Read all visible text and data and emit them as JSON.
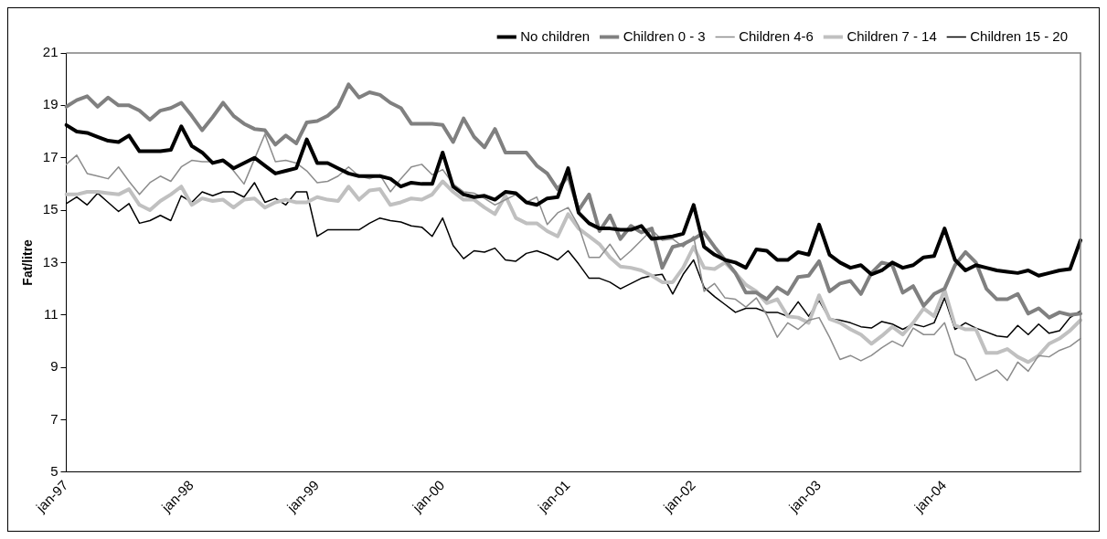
{
  "chart_data": {
    "type": "line",
    "ylabel": "Fat/litre",
    "categories": [
      "jan-97",
      null,
      null,
      null,
      null,
      null,
      null,
      null,
      null,
      null,
      null,
      null,
      "jan-98",
      null,
      null,
      null,
      null,
      null,
      null,
      null,
      null,
      null,
      null,
      null,
      "jan-99",
      null,
      null,
      null,
      null,
      null,
      null,
      null,
      null,
      null,
      null,
      null,
      "jan-00",
      null,
      null,
      null,
      null,
      null,
      null,
      null,
      null,
      null,
      null,
      null,
      "jan-01",
      null,
      null,
      null,
      null,
      null,
      null,
      null,
      null,
      null,
      null,
      null,
      "jan-02",
      null,
      null,
      null,
      null,
      null,
      null,
      null,
      null,
      null,
      null,
      null,
      "jan-03",
      null,
      null,
      null,
      null,
      null,
      null,
      null,
      null,
      null,
      null,
      null,
      "jan-04",
      null,
      null,
      null,
      null,
      null,
      null,
      null,
      null,
      null,
      null,
      null,
      null,
      null
    ],
    "series": [
      {
        "name": "No children",
        "color": "#000000",
        "values": [
          18.25,
          18.0,
          17.95,
          17.8,
          17.65,
          17.6,
          17.85,
          17.25,
          17.25,
          17.25,
          17.3,
          18.2,
          17.45,
          17.2,
          16.8,
          16.9,
          16.6,
          16.8,
          17.0,
          16.7,
          16.4,
          16.5,
          16.6,
          17.7,
          16.8,
          16.8,
          16.6,
          16.4,
          16.3,
          16.3,
          16.3,
          16.2,
          15.9,
          16.05,
          16.0,
          16.0,
          17.2,
          15.9,
          15.6,
          15.5,
          15.55,
          15.4,
          15.7,
          15.65,
          15.3,
          15.2,
          15.45,
          15.5,
          16.6,
          14.9,
          14.5,
          14.3,
          14.3,
          14.25,
          14.25,
          14.4,
          13.9,
          13.95,
          14.0,
          14.1,
          15.2,
          13.6,
          13.3,
          13.1,
          13.0,
          12.8,
          13.5,
          13.45,
          13.1,
          13.1,
          13.4,
          13.3,
          14.45,
          13.3,
          13.0,
          12.8,
          12.9,
          12.55,
          12.7,
          13.0,
          12.8,
          12.9,
          13.2,
          13.25,
          14.3,
          13.1,
          12.7,
          12.9,
          12.8,
          12.7,
          12.65,
          12.6,
          12.7,
          12.5,
          12.6,
          12.7,
          12.75,
          13.85
        ]
      },
      {
        "name": "Children 0 - 3",
        "color": "#808080",
        "values": [
          18.95,
          19.2,
          19.35,
          18.95,
          19.3,
          19.0,
          19.0,
          18.8,
          18.45,
          18.8,
          18.9,
          19.1,
          18.6,
          18.05,
          18.55,
          19.1,
          18.6,
          18.3,
          18.1,
          18.05,
          17.5,
          17.85,
          17.55,
          18.35,
          18.4,
          18.6,
          18.95,
          19.8,
          19.3,
          19.5,
          19.4,
          19.1,
          18.9,
          18.3,
          18.3,
          18.3,
          18.25,
          17.6,
          18.5,
          17.8,
          17.4,
          18.1,
          17.2,
          17.2,
          17.2,
          16.7,
          16.4,
          15.8,
          16.3,
          15.0,
          15.6,
          14.2,
          14.8,
          13.9,
          14.4,
          14.15,
          14.3,
          12.8,
          13.6,
          13.7,
          13.9,
          14.15,
          13.6,
          13.1,
          12.6,
          11.85,
          11.85,
          11.6,
          12.05,
          11.8,
          12.45,
          12.5,
          13.05,
          11.9,
          12.2,
          12.3,
          11.8,
          12.6,
          13.0,
          12.9,
          11.85,
          12.1,
          11.35,
          11.8,
          12.0,
          12.9,
          13.4,
          13.0,
          12.0,
          11.6,
          11.6,
          11.8,
          11.05,
          11.25,
          10.9,
          11.1,
          11.0,
          11.05
        ]
      },
      {
        "name": "Children 4-6",
        "color": "#8c8c8c",
        "values": [
          16.75,
          17.1,
          16.4,
          16.3,
          16.2,
          16.65,
          16.1,
          15.6,
          16.05,
          16.3,
          16.1,
          16.65,
          16.9,
          16.85,
          16.85,
          16.9,
          16.5,
          16.0,
          16.95,
          17.9,
          16.85,
          16.9,
          16.8,
          16.5,
          16.05,
          16.1,
          16.3,
          16.65,
          16.3,
          16.2,
          16.35,
          15.7,
          16.2,
          16.65,
          16.75,
          16.35,
          16.55,
          16.0,
          15.7,
          15.65,
          15.45,
          15.2,
          15.4,
          15.6,
          15.3,
          15.5,
          14.45,
          14.9,
          15.1,
          14.4,
          13.2,
          13.2,
          13.7,
          13.1,
          13.45,
          13.85,
          14.25,
          13.85,
          13.9,
          13.6,
          14.0,
          11.9,
          12.2,
          11.65,
          11.6,
          11.3,
          11.65,
          11.0,
          10.15,
          10.7,
          10.45,
          10.8,
          10.9,
          10.15,
          9.3,
          9.45,
          9.25,
          9.45,
          9.75,
          10.0,
          9.8,
          10.5,
          10.25,
          10.25,
          10.7,
          9.5,
          9.3,
          8.5,
          8.7,
          8.9,
          8.5,
          9.2,
          8.85,
          9.45,
          9.4,
          9.65,
          9.8,
          10.1
        ]
      },
      {
        "name": "Children 7 - 14",
        "color": "#c0c0c0",
        "values": [
          15.6,
          15.6,
          15.7,
          15.7,
          15.65,
          15.6,
          15.8,
          15.2,
          15.0,
          15.35,
          15.6,
          15.9,
          15.2,
          15.45,
          15.35,
          15.4,
          15.1,
          15.4,
          15.45,
          15.1,
          15.3,
          15.4,
          15.3,
          15.3,
          15.5,
          15.4,
          15.35,
          15.9,
          15.4,
          15.75,
          15.8,
          15.2,
          15.3,
          15.45,
          15.4,
          15.6,
          16.1,
          15.7,
          15.4,
          15.4,
          15.1,
          14.85,
          15.55,
          14.7,
          14.5,
          14.5,
          14.2,
          14.0,
          14.85,
          14.3,
          14.0,
          13.7,
          13.2,
          12.85,
          12.8,
          12.7,
          12.5,
          12.25,
          12.25,
          12.8,
          13.6,
          12.8,
          12.75,
          13.0,
          12.6,
          12.15,
          11.9,
          11.45,
          11.6,
          10.95,
          10.9,
          10.7,
          11.75,
          10.85,
          10.7,
          10.45,
          10.25,
          9.9,
          10.2,
          10.55,
          10.25,
          10.7,
          11.25,
          10.95,
          11.95,
          10.6,
          10.45,
          10.45,
          9.55,
          9.55,
          9.7,
          9.4,
          9.2,
          9.45,
          9.9,
          10.1,
          10.4,
          10.8
        ]
      },
      {
        "name": "Children 15 - 20",
        "color": "#000000",
        "values": [
          15.25,
          15.5,
          15.2,
          15.65,
          15.3,
          14.95,
          15.25,
          14.5,
          14.6,
          14.8,
          14.6,
          15.55,
          15.3,
          15.7,
          15.55,
          15.7,
          15.7,
          15.5,
          16.05,
          15.3,
          15.45,
          15.2,
          15.7,
          15.7,
          14.0,
          14.25,
          14.25,
          14.25,
          14.25,
          14.5,
          14.7,
          14.6,
          14.55,
          14.4,
          14.35,
          14.0,
          14.7,
          13.65,
          13.15,
          13.45,
          13.4,
          13.55,
          13.1,
          13.05,
          13.35,
          13.45,
          13.3,
          13.1,
          13.45,
          12.95,
          12.4,
          12.4,
          12.25,
          12.0,
          12.2,
          12.4,
          12.5,
          12.55,
          11.8,
          12.55,
          13.1,
          12.05,
          11.7,
          11.4,
          11.1,
          11.25,
          11.25,
          11.1,
          11.1,
          10.95,
          11.5,
          10.95,
          11.55,
          10.85,
          10.8,
          10.7,
          10.55,
          10.5,
          10.75,
          10.65,
          10.45,
          10.65,
          10.55,
          10.7,
          11.65,
          10.45,
          10.7,
          10.5,
          10.35,
          10.2,
          10.15,
          10.6,
          10.25,
          10.65,
          10.3,
          10.4,
          10.9,
          11.15
        ]
      }
    ],
    "ylim": [
      5,
      21
    ],
    "yticks": [
      5,
      7,
      9,
      11,
      13,
      15,
      17,
      19,
      21
    ],
    "grid": false,
    "legend": "top right",
    "marker": "none",
    "line_style": "solid"
  }
}
